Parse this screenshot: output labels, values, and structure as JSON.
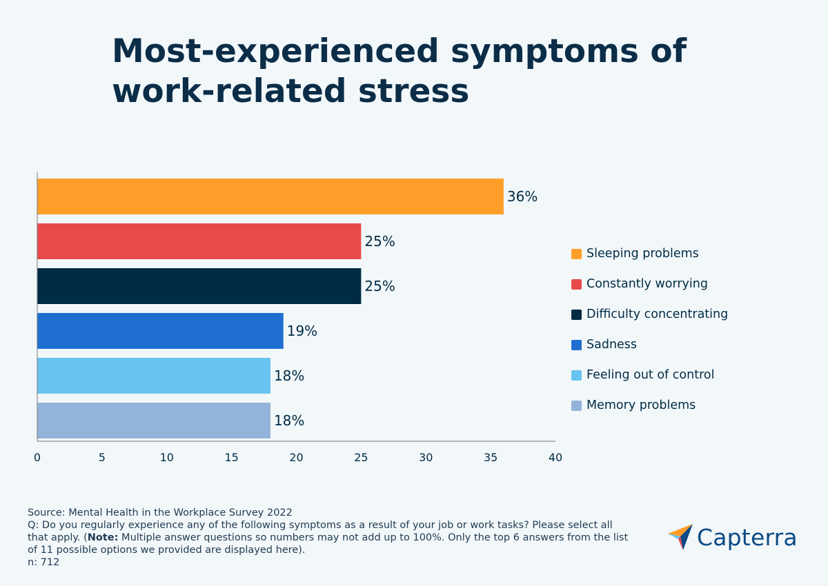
{
  "title": "Most-experienced symptoms of work-related stress",
  "chart_data": {
    "type": "bar",
    "orientation": "horizontal",
    "title": "Most-experienced symptoms of work-related stress",
    "categories": [
      "Sleeping problems",
      "Constantly worrying",
      "Difficulty concentrating",
      "Sadness",
      "Feeling out of control",
      "Memory problems"
    ],
    "values": [
      36,
      25,
      25,
      19,
      18,
      18
    ],
    "value_labels": [
      "36%",
      "25%",
      "25%",
      "19%",
      "18%",
      "18%"
    ],
    "colors": [
      "#ff9f2a",
      "#e84a4a",
      "#002b45",
      "#1e6fd0",
      "#67c3ef",
      "#93b4da"
    ],
    "xlim": [
      0,
      40
    ],
    "xticks": [
      0,
      5,
      10,
      15,
      20,
      25,
      30,
      35,
      40
    ],
    "xlabel": "",
    "ylabel": "",
    "grid": false,
    "legend": "right"
  },
  "source": {
    "line1": "Source: Mental Health in the Workplace Survey 2022",
    "question_start": "Q: Do you regularly experience any of the following symptoms as a result of your job or work tasks? Please select all that apply. (",
    "note_label": "Note:",
    "note_text": " Multiple answer questions so numbers may not add up to 100%. Only the top 6 answers from the list of 11 possible options we provided are displayed here).",
    "n": "n: 712"
  },
  "logo": {
    "text": "Capterra",
    "icon": "capterra-arrow-icon"
  }
}
